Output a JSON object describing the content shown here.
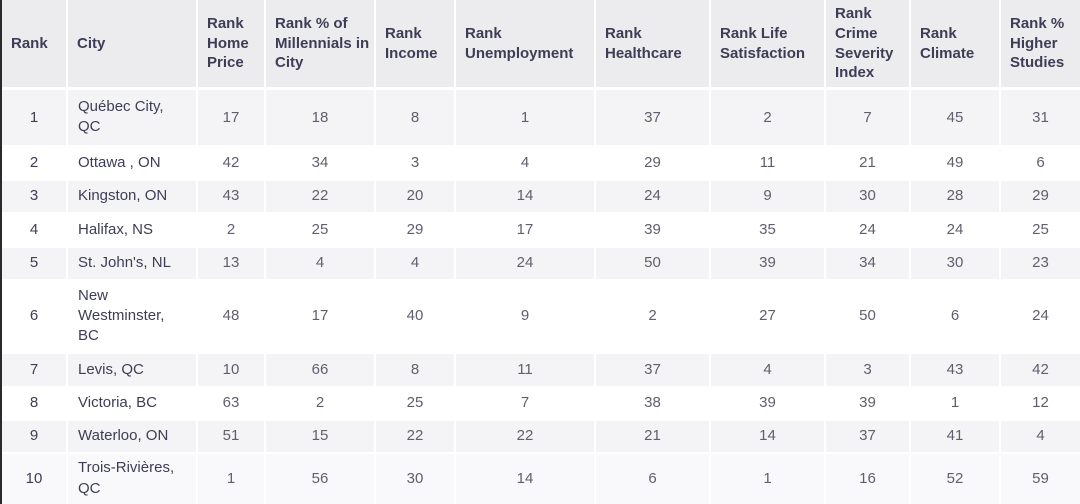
{
  "chart_data": {
    "type": "table",
    "columns": [
      {
        "id": "rank",
        "label": "Rank"
      },
      {
        "id": "city",
        "label": "City"
      },
      {
        "id": "home_price",
        "label": "Rank Home Price"
      },
      {
        "id": "millennials",
        "label": "Rank % of Millennials in City"
      },
      {
        "id": "income",
        "label": "Rank Income"
      },
      {
        "id": "unemployment",
        "label": "Rank Unemployment"
      },
      {
        "id": "healthcare",
        "label": "Rank Healthcare"
      },
      {
        "id": "life_satisfaction",
        "label": "Rank Life Satisfaction"
      },
      {
        "id": "crime_severity",
        "label": "Rank Crime Severity Index"
      },
      {
        "id": "climate",
        "label": "Rank Climate"
      },
      {
        "id": "higher_studies",
        "label": "Rank % Higher Studies"
      }
    ],
    "rows": [
      {
        "rank": "1",
        "city": "Québec City, QC",
        "values": [
          17,
          18,
          8,
          1,
          37,
          2,
          7,
          45,
          31
        ]
      },
      {
        "rank": "2",
        "city": "Ottawa , ON",
        "values": [
          42,
          34,
          3,
          4,
          29,
          11,
          21,
          49,
          6
        ]
      },
      {
        "rank": "3",
        "city": "Kingston, ON",
        "values": [
          43,
          22,
          20,
          14,
          24,
          9,
          30,
          28,
          29
        ]
      },
      {
        "rank": "4",
        "city": "Halifax, NS",
        "values": [
          2,
          25,
          29,
          17,
          39,
          35,
          24,
          24,
          25
        ]
      },
      {
        "rank": "5",
        "city": "St. John's, NL",
        "values": [
          13,
          4,
          4,
          24,
          50,
          39,
          34,
          30,
          23
        ]
      },
      {
        "rank": "6",
        "city": "New Westminster, BC",
        "values": [
          48,
          17,
          40,
          9,
          2,
          27,
          50,
          6,
          24
        ]
      },
      {
        "rank": "7",
        "city": "Levis, QC",
        "values": [
          10,
          66,
          8,
          11,
          37,
          4,
          3,
          43,
          42
        ]
      },
      {
        "rank": "8",
        "city": "Victoria, BC",
        "values": [
          63,
          2,
          25,
          7,
          38,
          39,
          39,
          1,
          12
        ]
      },
      {
        "rank": "9",
        "city": "Waterloo, ON",
        "values": [
          51,
          15,
          22,
          22,
          21,
          14,
          37,
          41,
          4
        ]
      },
      {
        "rank": "10",
        "city": "Trois-Rivières, QC",
        "values": [
          1,
          56,
          30,
          14,
          6,
          1,
          16,
          52,
          59
        ]
      }
    ]
  },
  "colors": {
    "header_bg": "#ececef",
    "header_text": "#3d3d56",
    "value_text": "#5f5f6d",
    "row_stripe": "#f4f4f7",
    "row_white": "#ffffff",
    "row_last": "#f9f9fb",
    "border_white": "#ffffff",
    "table_edge": "#2a2a2a"
  }
}
